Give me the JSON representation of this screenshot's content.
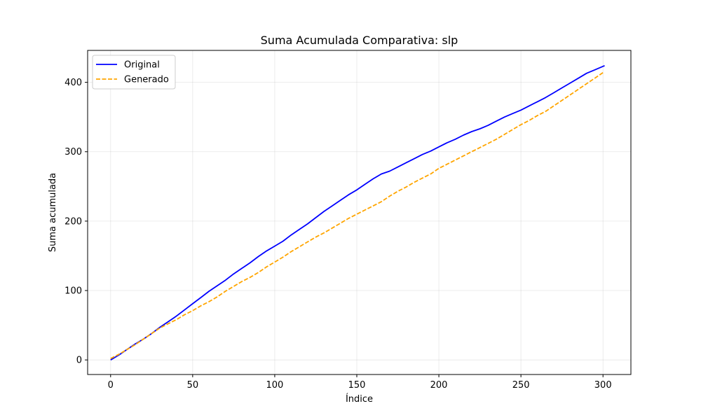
{
  "chart_data": {
    "type": "line",
    "title": "Suma Acumulada Comparativa: slp",
    "xlabel": "Índice",
    "ylabel": "Suma acumulada",
    "xlim": [
      -14,
      317
    ],
    "ylim": [
      -21,
      446
    ],
    "xticks": [
      0,
      50,
      100,
      150,
      200,
      250,
      300
    ],
    "yticks": [
      0,
      100,
      200,
      300,
      400
    ],
    "grid": true,
    "legend_position": "top-left",
    "series": [
      {
        "name": "Original",
        "color": "#0000ff",
        "dash": "solid",
        "x": [
          0,
          5,
          10,
          15,
          20,
          25,
          30,
          35,
          40,
          45,
          50,
          55,
          60,
          65,
          70,
          75,
          80,
          85,
          90,
          95,
          100,
          105,
          110,
          115,
          120,
          125,
          130,
          135,
          140,
          145,
          150,
          155,
          160,
          165,
          170,
          175,
          180,
          185,
          190,
          195,
          200,
          205,
          210,
          215,
          220,
          225,
          230,
          235,
          240,
          245,
          250,
          255,
          260,
          265,
          270,
          275,
          280,
          285,
          290,
          295,
          301
        ],
        "y": [
          0,
          7,
          15,
          23,
          30,
          38,
          47,
          55,
          63,
          72,
          81,
          90,
          99,
          107,
          115,
          124,
          132,
          140,
          149,
          157,
          164,
          171,
          180,
          188,
          196,
          205,
          214,
          222,
          230,
          238,
          245,
          253,
          261,
          268,
          272,
          278,
          284,
          290,
          296,
          301,
          307,
          313,
          318,
          324,
          329,
          333,
          338,
          344,
          350,
          355,
          360,
          366,
          372,
          378,
          385,
          392,
          399,
          406,
          413,
          418,
          424
        ]
      },
      {
        "name": "Generado",
        "color": "#ffa500",
        "dash": "dashed",
        "x": [
          0,
          5,
          10,
          15,
          20,
          25,
          30,
          35,
          40,
          45,
          50,
          55,
          60,
          65,
          70,
          75,
          80,
          85,
          90,
          95,
          100,
          105,
          110,
          115,
          120,
          125,
          130,
          135,
          140,
          145,
          150,
          155,
          160,
          165,
          170,
          175,
          180,
          185,
          190,
          195,
          200,
          205,
          210,
          215,
          220,
          225,
          230,
          235,
          240,
          245,
          250,
          255,
          260,
          265,
          270,
          275,
          280,
          285,
          290,
          295,
          300
        ],
        "y": [
          2,
          8,
          15,
          22,
          30,
          38,
          46,
          52,
          58,
          65,
          71,
          78,
          84,
          91,
          99,
          106,
          113,
          119,
          126,
          134,
          141,
          148,
          156,
          163,
          170,
          177,
          183,
          190,
          197,
          204,
          210,
          216,
          222,
          228,
          236,
          243,
          249,
          256,
          262,
          268,
          276,
          282,
          288,
          294,
          300,
          306,
          312,
          318,
          325,
          332,
          339,
          345,
          352,
          358,
          366,
          374,
          382,
          390,
          398,
          406,
          414
        ]
      }
    ]
  }
}
